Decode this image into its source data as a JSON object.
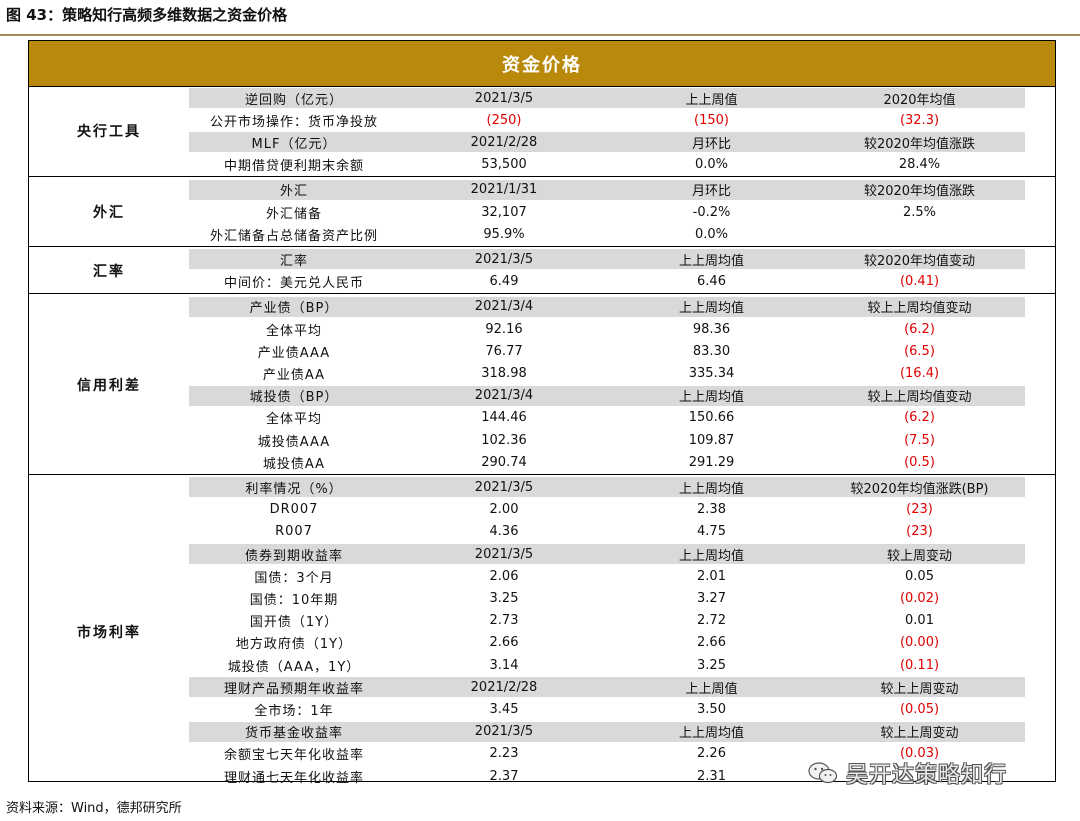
{
  "figure_title": "图 43：策略知行高频多维数据之资金价格",
  "banner": "资金价格",
  "source": "资料来源：Wind，德邦研究所",
  "watermark": "吴开达策略知行",
  "sections": [
    {
      "label": "央行工具",
      "rows": [
        {
          "hdr": true,
          "cells": [
            "逆回购（亿元）",
            "2021/3/5",
            "上上周值",
            "2020年均值"
          ]
        },
        {
          "hdr": false,
          "cells": [
            "公开市场操作：货币净投放",
            "(250)",
            "(150)",
            "(32.3)"
          ],
          "neg": [
            1,
            2,
            3
          ]
        },
        {
          "hdr": true,
          "cells": [
            "MLF（亿元）",
            "2021/2/28",
            "月环比",
            "较2020年均值涨跌"
          ]
        },
        {
          "hdr": false,
          "cells": [
            "中期借贷便利期末余额",
            "53,500",
            "0.0%",
            "28.4%"
          ]
        }
      ]
    },
    {
      "label": "外汇",
      "rows": [
        {
          "hdr": true,
          "cells": [
            "外汇",
            "2021/1/31",
            "月环比",
            "较2020年均值涨跌"
          ]
        },
        {
          "hdr": false,
          "cells": [
            "外汇储备",
            "32,107",
            "-0.2%",
            "2.5%"
          ]
        },
        {
          "hdr": false,
          "cells": [
            "外汇储备占总储备资产比例",
            "95.9%",
            "0.0%",
            ""
          ]
        }
      ]
    },
    {
      "label": "汇率",
      "rows": [
        {
          "hdr": true,
          "cells": [
            "汇率",
            "2021/3/5",
            "上上周均值",
            "较2020年均值变动"
          ]
        },
        {
          "hdr": false,
          "cells": [
            "中间价：美元兑人民币",
            "6.49",
            "6.46",
            "(0.41)"
          ],
          "neg": [
            3
          ]
        }
      ]
    },
    {
      "label": "信用利差",
      "rows": [
        {
          "hdr": true,
          "cells": [
            "产业债（BP）",
            "2021/3/4",
            "上上周均值",
            "较上上周均值变动"
          ]
        },
        {
          "hdr": false,
          "cells": [
            "全体平均",
            "92.16",
            "98.36",
            "(6.2)"
          ],
          "neg": [
            3
          ]
        },
        {
          "hdr": false,
          "cells": [
            "产业债AAA",
            "76.77",
            "83.30",
            "(6.5)"
          ],
          "neg": [
            3
          ]
        },
        {
          "hdr": false,
          "cells": [
            "产业债AA",
            "318.98",
            "335.34",
            "(16.4)"
          ],
          "neg": [
            3
          ]
        },
        {
          "hdr": true,
          "cells": [
            "城投债（BP）",
            "2021/3/4",
            "上上周均值",
            "较上上周均值变动"
          ]
        },
        {
          "hdr": false,
          "cells": [
            "全体平均",
            "144.46",
            "150.66",
            "(6.2)"
          ],
          "neg": [
            3
          ]
        },
        {
          "hdr": false,
          "cells": [
            "城投债AAA",
            "102.36",
            "109.87",
            "(7.5)"
          ],
          "neg": [
            3
          ]
        },
        {
          "hdr": false,
          "cells": [
            "城投债AA",
            "290.74",
            "291.29",
            "(0.5)"
          ],
          "neg": [
            3
          ]
        }
      ]
    },
    {
      "label": "市场利率",
      "rows": [
        {
          "hdr": true,
          "cells": [
            "利率情况（%）",
            "2021/3/5",
            "上上周均值",
            "较2020年均值涨跌(BP)"
          ]
        },
        {
          "hdr": false,
          "cells": [
            "DR007",
            "2.00",
            "2.38",
            "(23)"
          ],
          "neg": [
            3
          ]
        },
        {
          "hdr": false,
          "cells": [
            "R007",
            "4.36",
            "4.75",
            "(23)"
          ],
          "neg": [
            3
          ]
        },
        {
          "hdr": true,
          "cells": [
            "债券到期收益率",
            "2021/3/5",
            "上上周均值",
            "较上周变动"
          ]
        },
        {
          "hdr": false,
          "cells": [
            "国债：3个月",
            "2.06",
            "2.01",
            "0.05"
          ]
        },
        {
          "hdr": false,
          "cells": [
            "国债：10年期",
            "3.25",
            "3.27",
            "(0.02)"
          ],
          "neg": [
            3
          ]
        },
        {
          "hdr": false,
          "cells": [
            "国开债（1Y）",
            "2.73",
            "2.72",
            "0.01"
          ]
        },
        {
          "hdr": false,
          "cells": [
            "地方政府债（1Y）",
            "2.66",
            "2.66",
            "(0.00)"
          ],
          "neg": [
            3
          ]
        },
        {
          "hdr": false,
          "cells": [
            "城投债（AAA，1Y）",
            "3.14",
            "3.25",
            "(0.11)"
          ],
          "neg": [
            3
          ]
        },
        {
          "hdr": true,
          "cells": [
            "理财产品预期年收益率",
            "2021/2/28",
            "上上周值",
            "较上上周变动"
          ]
        },
        {
          "hdr": false,
          "cells": [
            "全市场：1年",
            "3.45",
            "3.50",
            "(0.05)"
          ],
          "neg": [
            3
          ]
        },
        {
          "hdr": true,
          "cells": [
            "货币基金收益率",
            "2021/3/5",
            "上上周均值",
            "较上上周变动"
          ]
        },
        {
          "hdr": false,
          "cells": [
            "余额宝七天年化收益率",
            "2.23",
            "2.26",
            "(0.03)"
          ],
          "neg": [
            3
          ]
        },
        {
          "hdr": false,
          "cells": [
            "理财通七天年化收益率",
            "2.37",
            "2.31",
            ""
          ]
        }
      ]
    }
  ]
}
